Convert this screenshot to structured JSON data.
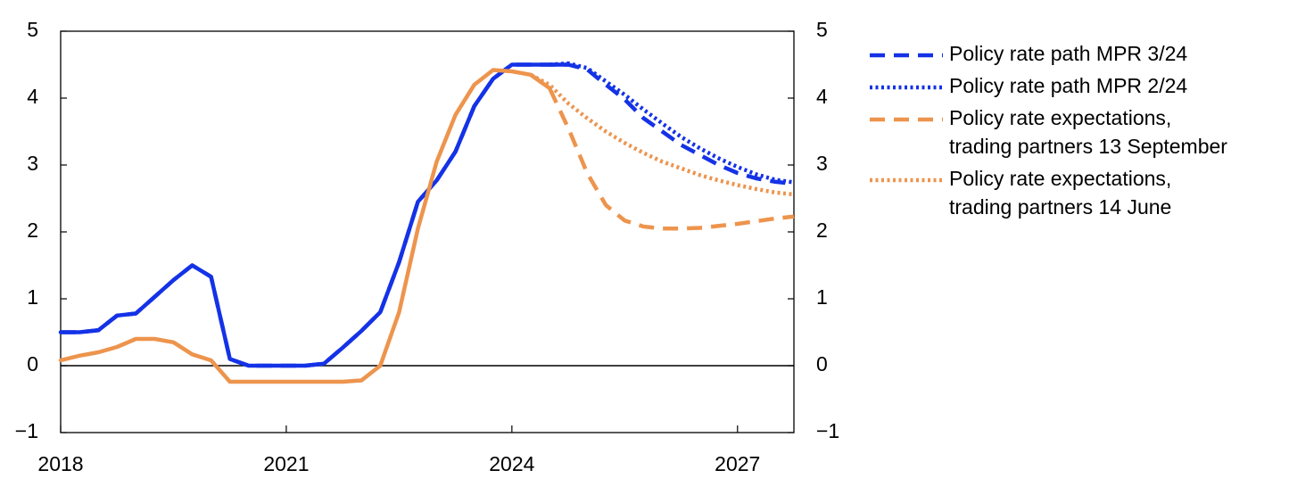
{
  "chart_data": {
    "type": "line",
    "title": "",
    "xlabel": "",
    "ylabel": "",
    "xlim": [
      2018.0,
      2027.75
    ],
    "ylim": [
      -1,
      5
    ],
    "x_ticks": [
      2018,
      2021,
      2024,
      2027
    ],
    "x_tick_labels": [
      "2018",
      "2021",
      "2024",
      "2027"
    ],
    "y_ticks": [
      -1,
      0,
      1,
      2,
      3,
      4,
      5
    ],
    "y_tick_labels_left": [
      "−1",
      "0",
      "1",
      "2",
      "3",
      "4",
      "5"
    ],
    "y_tick_labels_right": [
      "−1",
      "0",
      "1",
      "2",
      "3",
      "4",
      "5"
    ],
    "zero_line": true,
    "grid": false,
    "legend_position": "right",
    "series": [
      {
        "name": "Policy rate path MPR 3/24",
        "legend_lines": [
          "Policy rate path MPR 3/24"
        ],
        "color": "#1432e6",
        "style": "dashed",
        "x": [
          2018.0,
          2018.25,
          2018.5,
          2018.75,
          2019.0,
          2019.25,
          2019.5,
          2019.75,
          2020.0,
          2020.25,
          2020.5,
          2020.75,
          2021.0,
          2021.25,
          2021.5,
          2021.75,
          2022.0,
          2022.25,
          2022.5,
          2022.75,
          2023.0,
          2023.25,
          2023.5,
          2023.75,
          2024.0,
          2024.25,
          2024.5,
          2024.75,
          2025.0,
          2025.25,
          2025.5,
          2025.75,
          2026.0,
          2026.25,
          2026.5,
          2026.75,
          2027.0,
          2027.25,
          2027.5,
          2027.75
        ],
        "values": [
          0.5,
          0.5,
          0.53,
          0.75,
          0.78,
          1.03,
          1.28,
          1.5,
          1.33,
          0.1,
          0.0,
          0.0,
          0.0,
          0.0,
          0.03,
          0.27,
          0.52,
          0.8,
          1.55,
          2.45,
          2.77,
          3.2,
          3.88,
          4.29,
          4.5,
          4.5,
          4.5,
          4.5,
          4.43,
          4.2,
          3.98,
          3.7,
          3.5,
          3.3,
          3.15,
          3.0,
          2.88,
          2.8,
          2.75,
          2.72
        ]
      },
      {
        "name": "Policy rate path MPR 2/24",
        "legend_lines": [
          "Policy rate path MPR 2/24"
        ],
        "color": "#1432e6",
        "style": "dotted",
        "x": [
          2024.5,
          2024.75,
          2025.0,
          2025.25,
          2025.5,
          2025.75,
          2026.0,
          2026.25,
          2026.5,
          2026.75,
          2027.0,
          2027.25,
          2027.5,
          2027.75
        ],
        "values": [
          4.5,
          4.52,
          4.45,
          4.25,
          4.05,
          3.83,
          3.62,
          3.42,
          3.25,
          3.1,
          2.97,
          2.86,
          2.78,
          2.74
        ]
      },
      {
        "name": "Policy rate expectations, trading partners 13 September",
        "legend_lines": [
          "Policy rate expectations,",
          "trading partners 13 September"
        ],
        "color": "#ed944d",
        "style": "dashed",
        "x": [
          2024.25,
          2024.5,
          2024.75,
          2025.0,
          2025.25,
          2025.5,
          2025.75,
          2026.0,
          2026.25,
          2026.5,
          2026.75,
          2027.0,
          2027.25,
          2027.5,
          2027.75
        ],
        "values": [
          4.35,
          4.15,
          3.55,
          2.88,
          2.4,
          2.17,
          2.08,
          2.05,
          2.05,
          2.06,
          2.09,
          2.12,
          2.16,
          2.2,
          2.23
        ]
      },
      {
        "name": "Policy rate expectations, trading partners 14 June",
        "legend_lines": [
          "Policy rate expectations,",
          "trading partners 14 June"
        ],
        "color": "#ed944d",
        "style": "dotted",
        "x": [
          2024.25,
          2024.5,
          2024.75,
          2025.0,
          2025.25,
          2025.5,
          2025.75,
          2026.0,
          2026.25,
          2026.5,
          2026.75,
          2027.0,
          2027.25,
          2027.5,
          2027.75
        ],
        "values": [
          4.35,
          4.2,
          3.92,
          3.7,
          3.5,
          3.33,
          3.18,
          3.05,
          2.95,
          2.85,
          2.77,
          2.7,
          2.64,
          2.59,
          2.56
        ]
      },
      {
        "name": "Policy rate (historical, Norway)",
        "color": "#1432e6",
        "style": "solid",
        "in_legend": false,
        "x": [
          2018.0,
          2018.25,
          2018.5,
          2018.75,
          2019.0,
          2019.25,
          2019.5,
          2019.75,
          2020.0,
          2020.25,
          2020.5,
          2020.75,
          2021.0,
          2021.25,
          2021.5,
          2021.75,
          2022.0,
          2022.25,
          2022.5,
          2022.75,
          2023.0,
          2023.25,
          2023.5,
          2023.75,
          2024.0,
          2024.25,
          2024.5,
          2024.75
        ],
        "values": [
          0.5,
          0.5,
          0.53,
          0.75,
          0.78,
          1.03,
          1.28,
          1.5,
          1.33,
          0.1,
          0.0,
          0.0,
          0.0,
          0.0,
          0.03,
          0.27,
          0.52,
          0.8,
          1.55,
          2.45,
          2.77,
          3.2,
          3.88,
          4.29,
          4.5,
          4.5,
          4.5,
          4.5
        ]
      },
      {
        "name": "Policy rate (historical, trading partners)",
        "color": "#ed944d",
        "style": "solid",
        "in_legend": false,
        "x": [
          2018.0,
          2018.25,
          2018.5,
          2018.75,
          2019.0,
          2019.25,
          2019.5,
          2019.75,
          2020.0,
          2020.25,
          2020.5,
          2020.75,
          2021.0,
          2021.25,
          2021.5,
          2021.75,
          2022.0,
          2022.25,
          2022.5,
          2022.75,
          2023.0,
          2023.25,
          2023.5,
          2023.75,
          2024.0,
          2024.25,
          2024.5
        ],
        "values": [
          0.08,
          0.15,
          0.2,
          0.28,
          0.4,
          0.4,
          0.35,
          0.17,
          0.08,
          -0.24,
          -0.24,
          -0.24,
          -0.24,
          -0.24,
          -0.24,
          -0.24,
          -0.22,
          0.0,
          0.8,
          2.05,
          3.05,
          3.75,
          4.2,
          4.42,
          4.4,
          4.35,
          4.15
        ]
      }
    ]
  }
}
